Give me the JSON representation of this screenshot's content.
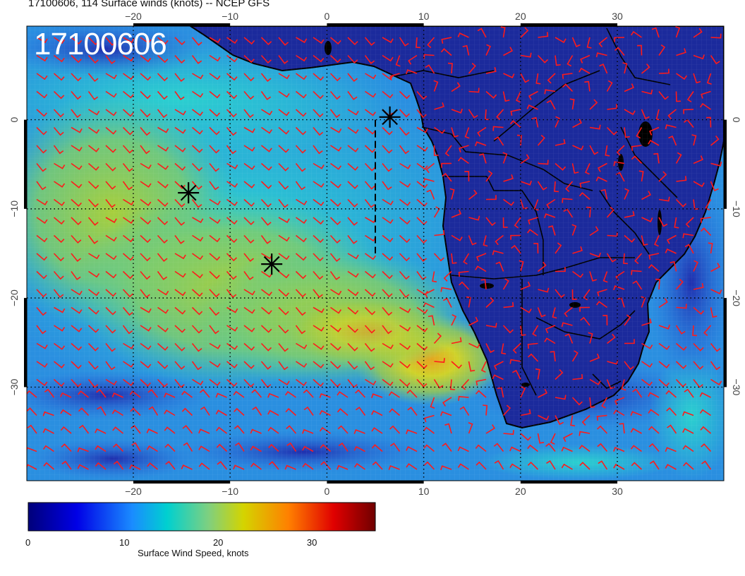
{
  "title": "17100606, 114 Surface winds (knots) -- NCEP GFS",
  "stamp": "17100606",
  "axes": {
    "lon_ticks": [
      "−20",
      "−10",
      "0",
      "10",
      "20",
      "30"
    ],
    "lon_values": [
      -20,
      -10,
      0,
      10,
      20,
      30
    ],
    "lat_ticks": [
      "0",
      "−10",
      "−20",
      "−30"
    ],
    "lat_values": [
      0,
      -10,
      -20,
      -30
    ],
    "lon_range": [
      -31,
      41
    ],
    "lat_range": [
      -40.5,
      10.5
    ]
  },
  "colorbar": {
    "label": "Surface Wind Speed, knots",
    "ticks": [
      "0",
      "10",
      "20",
      "30"
    ],
    "tick_values": [
      0,
      10,
      20,
      30
    ],
    "range": [
      0,
      37
    ]
  },
  "markers": [
    {
      "lon": 6.5,
      "lat": 0.3
    },
    {
      "lon": -14.3,
      "lat": -8.2
    },
    {
      "lon": -5.7,
      "lat": -16.2
    }
  ],
  "track": [
    [
      5,
      0
    ],
    [
      5,
      -15
    ]
  ],
  "colors": {
    "barbs": "#ff1a1a",
    "land": "#1b2a9c",
    "ocean_fast": "#9ec12c",
    "ocean_mid": "#2fc4c4"
  }
}
